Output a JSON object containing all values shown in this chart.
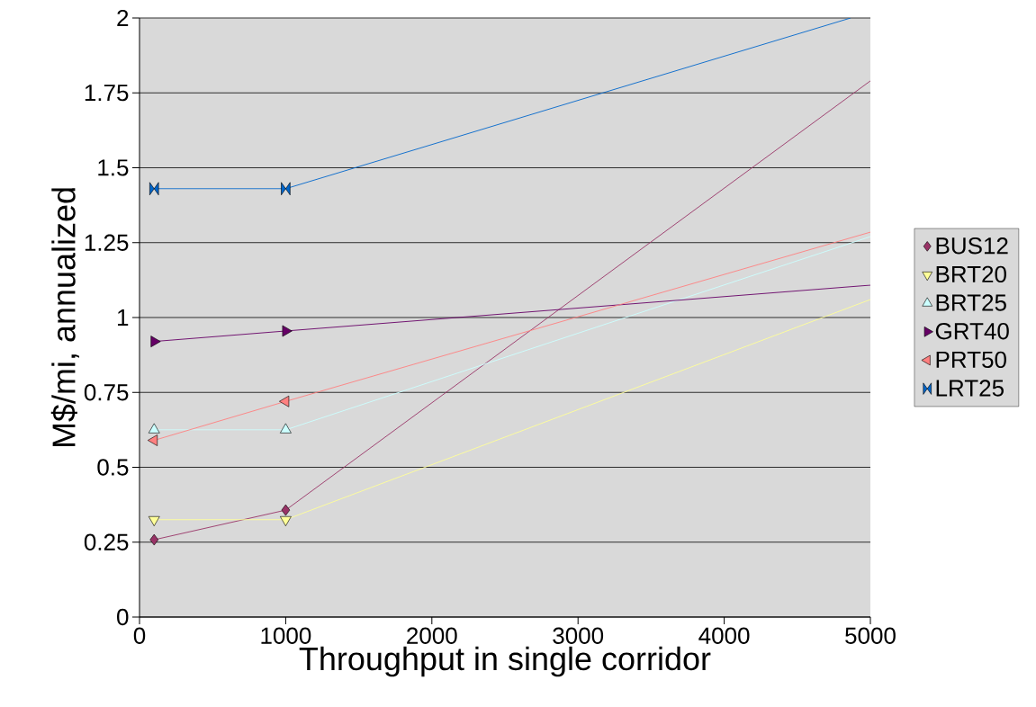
{
  "chart_data": {
    "type": "line",
    "xlabel": "Throughput in single corridor",
    "ylabel": "M$/mi, annualized",
    "x": [
      100,
      1000,
      5000
    ],
    "series": [
      {
        "name": "BUS12",
        "color": "#993366",
        "marker": "diamond",
        "values": [
          0.258,
          0.357,
          1.79
        ]
      },
      {
        "name": "BRT20",
        "color": "#ffff99",
        "marker": "triangle down",
        "values": [
          0.325,
          0.325,
          1.06
        ]
      },
      {
        "name": "BRT25",
        "color": "#ccffff",
        "marker": "triangle",
        "values": [
          0.625,
          0.625,
          1.27
        ]
      },
      {
        "name": "GRT40",
        "color": "#660066",
        "marker": "triangle right",
        "values": [
          0.92,
          0.955,
          1.108
        ]
      },
      {
        "name": "PRT50",
        "color": "#ff8080",
        "marker": "triangle left",
        "values": [
          0.59,
          0.72,
          1.285
        ]
      },
      {
        "name": "LRT25",
        "color": "#0066cc",
        "x": [
          100,
          1000,
          4865
        ],
        "values": [
          1.43,
          1.43,
          2
        ]
      }
    ],
    "xlim": [
      0,
      5000
    ],
    "xticks": [
      0,
      1000,
      2000,
      3000,
      4000,
      5000
    ],
    "ylim": [
      0,
      2
    ],
    "yticks": [
      0,
      0.25,
      0.5,
      0.75,
      1,
      1.25,
      1.5,
      1.75,
      2
    ],
    "grid": "y",
    "legend": "right"
  }
}
